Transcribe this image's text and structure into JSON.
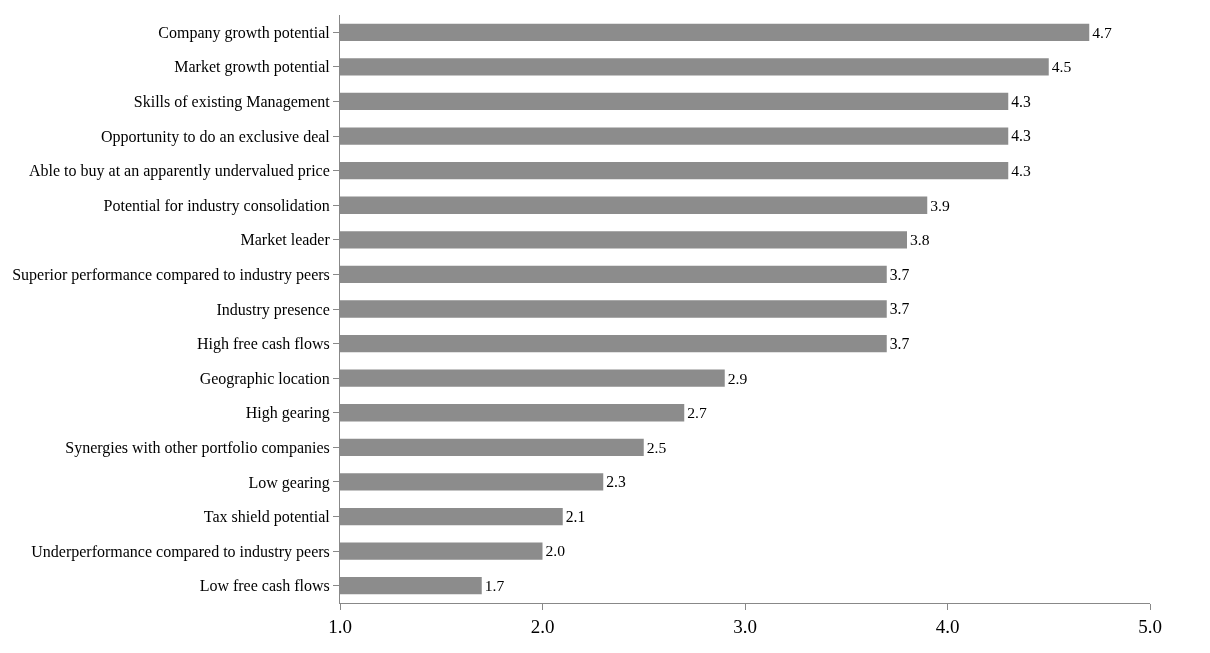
{
  "chart_data": {
    "type": "bar",
    "orientation": "horizontal",
    "categories": [
      "Company growth potential",
      "Market growth potential",
      "Skills of existing Management",
      "Opportunity to do an exclusive deal",
      "Able to buy at an apparently undervalued price",
      "Potential for industry consolidation",
      "Market leader",
      "Superior performance compared to industry peers",
      "Industry presence",
      "High free cash flows",
      "Geographic location",
      "High gearing",
      "Synergies with other portfolio companies",
      "Low gearing",
      "Tax shield potential",
      "Underperformance compared to industry peers",
      "Low free cash flows"
    ],
    "values": [
      4.7,
      4.5,
      4.3,
      4.3,
      4.3,
      3.9,
      3.8,
      3.7,
      3.7,
      3.7,
      2.9,
      2.7,
      2.5,
      2.3,
      2.1,
      2.0,
      1.7
    ],
    "value_labels": [
      "4.7",
      "4.5",
      "4.3",
      "4.3",
      "4.3",
      "3.9",
      "3.8",
      "3.7",
      "3.7",
      "3.7",
      "2.9",
      "2.7",
      "2.5",
      "2.3",
      "2.1",
      "2.0",
      "1.7"
    ],
    "color": "#8c8c8c",
    "xlim": [
      1,
      5
    ],
    "xticks": [
      {
        "value": 1,
        "label": "1.0"
      },
      {
        "value": 2,
        "label": "2.0"
      },
      {
        "value": 3,
        "label": "3.0"
      },
      {
        "value": 4,
        "label": "4.0"
      },
      {
        "value": 5,
        "label": "5.0"
      }
    ],
    "legend": false
  }
}
